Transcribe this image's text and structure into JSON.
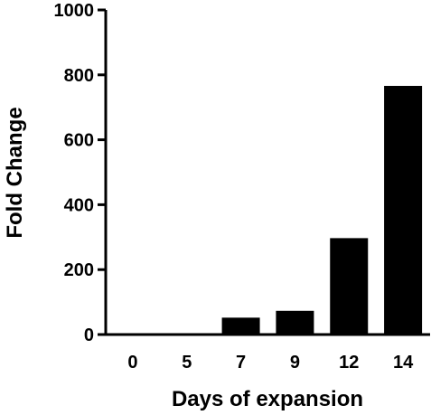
{
  "chart_data": {
    "type": "bar",
    "title": "",
    "xlabel": "Days of expansion",
    "ylabel": "Fold Change",
    "categories": [
      "0",
      "5",
      "7",
      "9",
      "12",
      "14"
    ],
    "values": [
      1,
      3,
      52,
      73,
      297,
      766
    ],
    "ylim": [
      0,
      1000
    ],
    "yticks": [
      "0",
      "200",
      "400",
      "600",
      "800",
      "1000"
    ],
    "grid": false,
    "legend": "none",
    "colors": {
      "bar": "#000000",
      "axis": "#000000",
      "text": "#000000",
      "background": "#ffffff"
    }
  }
}
